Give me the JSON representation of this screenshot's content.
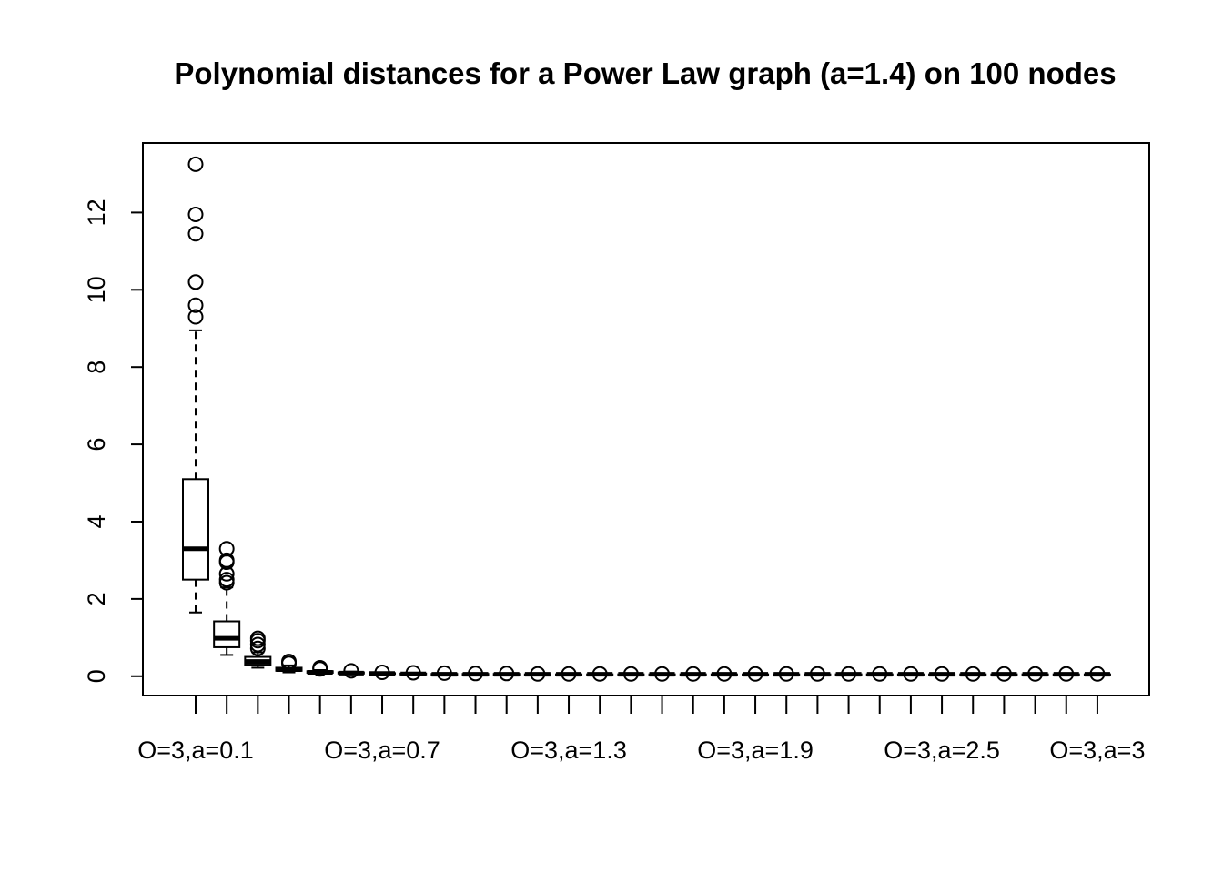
{
  "chart_data": {
    "type": "boxplot",
    "title": "Polynomial distances for a Power Law graph (a=1.4) on 100 nodes",
    "xlabel": "",
    "ylabel": "",
    "ylim": [
      -0.5,
      13.8
    ],
    "y_ticks": [
      0,
      2,
      4,
      6,
      8,
      10,
      12
    ],
    "x_tick_labels": [
      "O=3,a=0.1",
      "O=3,a=0.7",
      "O=3,a=1.3",
      "O=3,a=1.9",
      "O=3,a=2.5",
      "O=3,a=3"
    ],
    "x_tick_label_positions": [
      1,
      7,
      13,
      19,
      25,
      30
    ],
    "grid": false,
    "boxes": [
      {
        "q1": 2.5,
        "median": 3.3,
        "q3": 5.1,
        "whisker_low": 1.65,
        "whisker_high": 8.95,
        "outliers": [
          9.3,
          9.6,
          10.2,
          11.45,
          11.95,
          13.25
        ]
      },
      {
        "q1": 0.75,
        "median": 0.98,
        "q3": 1.42,
        "whisker_low": 0.55,
        "whisker_high": 2.3,
        "outliers": [
          2.42,
          2.5,
          2.65,
          2.95,
          3.0,
          3.3
        ]
      },
      {
        "q1": 0.3,
        "median": 0.38,
        "q3": 0.5,
        "whisker_low": 0.22,
        "whisker_high": 0.62,
        "outliers": [
          0.72,
          0.82,
          0.92,
          0.98
        ]
      },
      {
        "q1": 0.14,
        "median": 0.17,
        "q3": 0.22,
        "whisker_low": 0.1,
        "whisker_high": 0.28,
        "outliers": [
          0.33,
          0.38
        ]
      },
      {
        "q1": 0.09,
        "median": 0.1,
        "q3": 0.13,
        "whisker_low": 0.07,
        "whisker_high": 0.16,
        "outliers": [
          0.19,
          0.22
        ]
      },
      {
        "q1": 0.07,
        "median": 0.08,
        "q3": 0.1,
        "whisker_low": 0.05,
        "whisker_high": 0.12,
        "outliers": [
          0.14
        ]
      },
      {
        "q1": 0.06,
        "median": 0.07,
        "q3": 0.08,
        "whisker_low": 0.04,
        "whisker_high": 0.1,
        "outliers": [
          0.1
        ]
      },
      {
        "q1": 0.05,
        "median": 0.06,
        "q3": 0.07,
        "whisker_low": 0.04,
        "whisker_high": 0.09,
        "outliers": [
          0.09
        ]
      },
      {
        "q1": 0.05,
        "median": 0.05,
        "q3": 0.06,
        "whisker_low": 0.03,
        "whisker_high": 0.08,
        "outliers": [
          0.08
        ]
      },
      {
        "q1": 0.04,
        "median": 0.05,
        "q3": 0.06,
        "whisker_low": 0.03,
        "whisker_high": 0.07,
        "outliers": [
          0.07
        ]
      },
      {
        "q1": 0.04,
        "median": 0.05,
        "q3": 0.06,
        "whisker_low": 0.03,
        "whisker_high": 0.07,
        "outliers": [
          0.07
        ]
      },
      {
        "q1": 0.04,
        "median": 0.05,
        "q3": 0.05,
        "whisker_low": 0.03,
        "whisker_high": 0.06,
        "outliers": [
          0.06
        ]
      },
      {
        "q1": 0.04,
        "median": 0.05,
        "q3": 0.05,
        "whisker_low": 0.03,
        "whisker_high": 0.06,
        "outliers": [
          0.06
        ]
      },
      {
        "q1": 0.04,
        "median": 0.05,
        "q3": 0.05,
        "whisker_low": 0.03,
        "whisker_high": 0.06,
        "outliers": [
          0.06
        ]
      },
      {
        "q1": 0.04,
        "median": 0.05,
        "q3": 0.05,
        "whisker_low": 0.03,
        "whisker_high": 0.06,
        "outliers": [
          0.06
        ]
      },
      {
        "q1": 0.04,
        "median": 0.05,
        "q3": 0.05,
        "whisker_low": 0.03,
        "whisker_high": 0.06,
        "outliers": [
          0.06
        ]
      },
      {
        "q1": 0.04,
        "median": 0.05,
        "q3": 0.05,
        "whisker_low": 0.03,
        "whisker_high": 0.06,
        "outliers": [
          0.06
        ]
      },
      {
        "q1": 0.04,
        "median": 0.05,
        "q3": 0.05,
        "whisker_low": 0.03,
        "whisker_high": 0.06,
        "outliers": [
          0.06
        ]
      },
      {
        "q1": 0.04,
        "median": 0.05,
        "q3": 0.05,
        "whisker_low": 0.03,
        "whisker_high": 0.06,
        "outliers": [
          0.06
        ]
      },
      {
        "q1": 0.04,
        "median": 0.05,
        "q3": 0.05,
        "whisker_low": 0.03,
        "whisker_high": 0.06,
        "outliers": [
          0.06
        ]
      },
      {
        "q1": 0.04,
        "median": 0.05,
        "q3": 0.05,
        "whisker_low": 0.03,
        "whisker_high": 0.06,
        "outliers": [
          0.06
        ]
      },
      {
        "q1": 0.04,
        "median": 0.05,
        "q3": 0.05,
        "whisker_low": 0.03,
        "whisker_high": 0.06,
        "outliers": [
          0.06
        ]
      },
      {
        "q1": 0.04,
        "median": 0.05,
        "q3": 0.05,
        "whisker_low": 0.03,
        "whisker_high": 0.06,
        "outliers": [
          0.06
        ]
      },
      {
        "q1": 0.04,
        "median": 0.05,
        "q3": 0.05,
        "whisker_low": 0.03,
        "whisker_high": 0.06,
        "outliers": [
          0.06
        ]
      },
      {
        "q1": 0.04,
        "median": 0.05,
        "q3": 0.05,
        "whisker_low": 0.03,
        "whisker_high": 0.06,
        "outliers": [
          0.06
        ]
      },
      {
        "q1": 0.04,
        "median": 0.05,
        "q3": 0.05,
        "whisker_low": 0.03,
        "whisker_high": 0.06,
        "outliers": [
          0.06
        ]
      },
      {
        "q1": 0.04,
        "median": 0.05,
        "q3": 0.05,
        "whisker_low": 0.03,
        "whisker_high": 0.06,
        "outliers": [
          0.06
        ]
      },
      {
        "q1": 0.04,
        "median": 0.05,
        "q3": 0.05,
        "whisker_low": 0.03,
        "whisker_high": 0.06,
        "outliers": [
          0.06
        ]
      },
      {
        "q1": 0.04,
        "median": 0.05,
        "q3": 0.05,
        "whisker_low": 0.03,
        "whisker_high": 0.06,
        "outliers": [
          0.06
        ]
      },
      {
        "q1": 0.04,
        "median": 0.05,
        "q3": 0.05,
        "whisker_low": 0.03,
        "whisker_high": 0.06,
        "outliers": [
          0.06
        ]
      }
    ]
  }
}
